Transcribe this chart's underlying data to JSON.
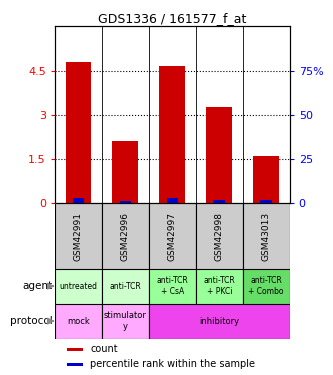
{
  "title": "GDS1336 / 161577_f_at",
  "samples": [
    "GSM42991",
    "GSM42996",
    "GSM42997",
    "GSM42998",
    "GSM43013"
  ],
  "count_values": [
    4.8,
    2.1,
    4.65,
    3.25,
    1.6
  ],
  "percentile_values": [
    0.18,
    0.08,
    0.18,
    0.12,
    0.1
  ],
  "ylim_left": [
    0,
    6
  ],
  "ylim_right": [
    0,
    100
  ],
  "yticks_left": [
    0,
    1.5,
    3.0,
    4.5
  ],
  "ytick_labels_left": [
    "0",
    "1.5",
    "3",
    "4.5"
  ],
  "yticks_right": [
    0,
    25,
    50,
    75
  ],
  "ytick_labels_right": [
    "0",
    "25",
    "50",
    "75%"
  ],
  "agent_labels": [
    "untreated",
    "anti-TCR",
    "anti-TCR\n+ CsA",
    "anti-TCR\n+ PKCi",
    "anti-TCR\n+ Combo"
  ],
  "agent_colors": [
    "#ccffcc",
    "#ccffcc",
    "#99ff99",
    "#99ff99",
    "#66dd66"
  ],
  "proto_groups": [
    [
      0,
      0,
      "#ffaaff",
      "mock"
    ],
    [
      1,
      1,
      "#ffaaff",
      "stimulator\ny"
    ],
    [
      2,
      4,
      "#ee44ee",
      "inhibitory"
    ]
  ],
  "bar_color_count": "#cc0000",
  "bar_color_pct": "#0000cc",
  "bar_width": 0.55,
  "sample_bg_color": "#cccccc",
  "legend_labels": [
    "count",
    "percentile rank within the sample"
  ]
}
